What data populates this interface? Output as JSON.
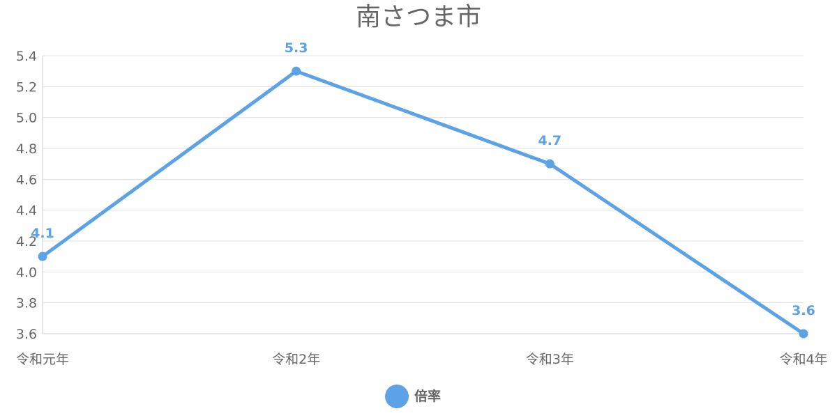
{
  "chart_data": {
    "type": "line",
    "title": "南さつま市",
    "categories": [
      "令和元年",
      "令和2年",
      "令和3年",
      "令和4年"
    ],
    "series": [
      {
        "name": "倍率",
        "values": [
          4.1,
          5.3,
          4.7,
          3.6
        ],
        "labels": [
          "4.1",
          "5.3",
          "4.7",
          "3.6"
        ],
        "color": "#5ba2e6"
      }
    ],
    "ylim": [
      3.6,
      5.4
    ],
    "yticks": [
      "3.6",
      "3.8",
      "4.0",
      "4.2",
      "4.4",
      "4.6",
      "4.8",
      "5.0",
      "5.2",
      "5.4"
    ],
    "grid": true,
    "legend": "bottom"
  }
}
